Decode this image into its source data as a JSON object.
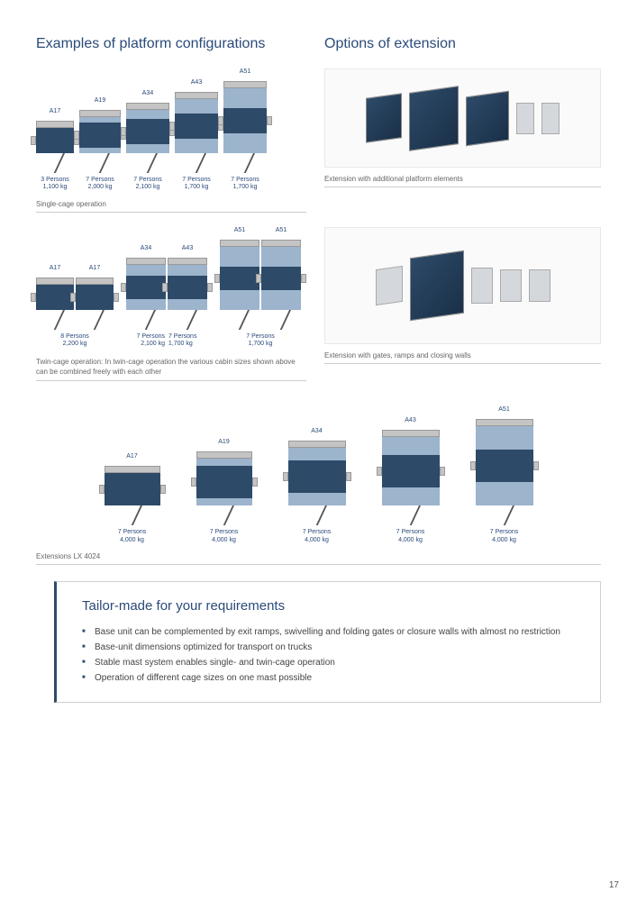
{
  "colors": {
    "heading": "#2a4a7a",
    "cage_dark": "#2d4a68",
    "cage_light": "#9cb4cc",
    "cage_grey": "#c4c4c4",
    "text": "#666666"
  },
  "headings": {
    "left": "Examples of platform configurations",
    "right": "Options of extension"
  },
  "single_cage": {
    "caption": "Single-cage operation",
    "items": [
      {
        "code": "A17",
        "w": 42,
        "h_upper": 0,
        "h_mid": 28,
        "h_lower": 0,
        "persons": "3 Persons",
        "weight": "1,100 kg"
      },
      {
        "code": "A19",
        "w": 46,
        "h_upper": 6,
        "h_mid": 28,
        "h_lower": 6,
        "persons": "7 Persons",
        "weight": "2,000 kg"
      },
      {
        "code": "A34",
        "w": 48,
        "h_upper": 10,
        "h_mid": 28,
        "h_lower": 10,
        "persons": "7 Persons",
        "weight": "2,100 kg"
      },
      {
        "code": "A43",
        "w": 48,
        "h_upper": 16,
        "h_mid": 28,
        "h_lower": 16,
        "persons": "7 Persons",
        "weight": "1,700 kg"
      },
      {
        "code": "A51",
        "w": 48,
        "h_upper": 22,
        "h_mid": 28,
        "h_lower": 22,
        "persons": "7 Persons",
        "weight": "1,700 kg"
      }
    ]
  },
  "twin_cage": {
    "caption": "Twin-cage operation: In twin-cage operation the various cabin sizes shown above can be combined freely with each other",
    "groups": [
      {
        "codes": [
          "A17",
          "A17"
        ],
        "w": 42,
        "h_upper": 0,
        "h_mid": 28,
        "h_lower": 0,
        "persons": "8 Persons",
        "weight": "2,200 kg"
      },
      {
        "codes": [
          "A34",
          "A43"
        ],
        "w": 44,
        "h_upper": 12,
        "h_mid": 26,
        "h_lower": 12,
        "persons": "7 Persons",
        "persons2": "7 Persons",
        "weight": "2,100 kg",
        "weight2": "1,700 kg"
      },
      {
        "codes": [
          "A51",
          "A51"
        ],
        "w": 44,
        "h_upper": 22,
        "h_mid": 26,
        "h_lower": 22,
        "persons": "7 Persons",
        "weight": "1,700 kg"
      }
    ]
  },
  "extensions_top_caption": "Extension with additional platform elements",
  "extensions_bot_caption": "Extension with gates, ramps and closing walls",
  "lx_row": {
    "caption": "Extensions LX 4024",
    "items": [
      {
        "code": "A17",
        "w": 62,
        "h_upper": 0,
        "h_mid": 36,
        "h_lower": 0,
        "persons": "7 Persons",
        "weight": "4,000 kg"
      },
      {
        "code": "A19",
        "w": 62,
        "h_upper": 8,
        "h_mid": 36,
        "h_lower": 8,
        "persons": "7 Persons",
        "weight": "4,000 kg"
      },
      {
        "code": "A34",
        "w": 64,
        "h_upper": 14,
        "h_mid": 36,
        "h_lower": 14,
        "persons": "7 Persons",
        "weight": "4,000 kg"
      },
      {
        "code": "A43",
        "w": 64,
        "h_upper": 20,
        "h_mid": 36,
        "h_lower": 20,
        "persons": "7 Persons",
        "weight": "4,000 kg"
      },
      {
        "code": "A51",
        "w": 64,
        "h_upper": 26,
        "h_mid": 36,
        "h_lower": 26,
        "persons": "7 Persons",
        "weight": "4,000 kg"
      }
    ]
  },
  "requirements": {
    "title": "Tailor-made for your requirements",
    "bullets": [
      "Base unit can be complemented by exit ramps, swivelling and folding gates or closure walls with almost no restriction",
      "Base-unit dimensions optimized for transport on trucks",
      "Stable mast system enables single- and twin-cage operation",
      "Operation of different cage sizes on one mast possible"
    ]
  },
  "page_number": "17"
}
